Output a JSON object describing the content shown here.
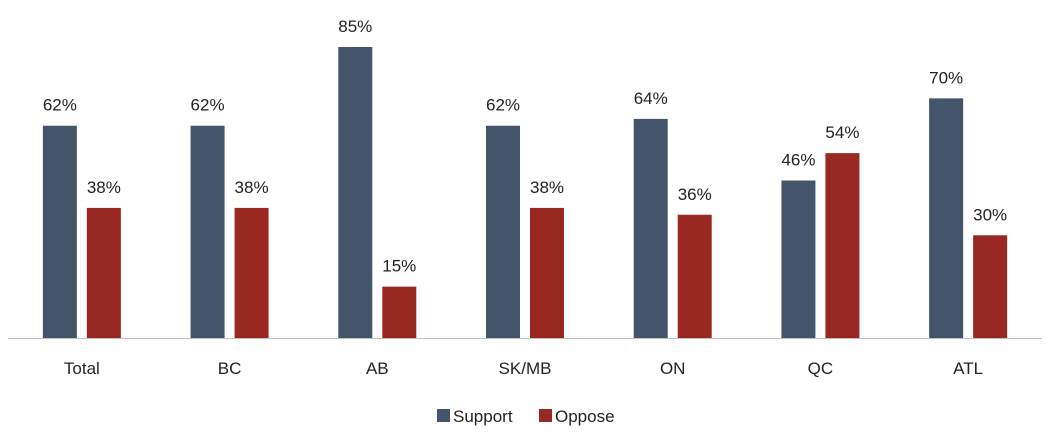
{
  "chart_data": {
    "type": "bar",
    "title": "",
    "xlabel": "",
    "ylabel": "",
    "ylim": [
      0,
      100
    ],
    "grid": false,
    "legend_position": "bottom",
    "categories": [
      "Total",
      "BC",
      "AB",
      "SK/MB",
      "ON",
      "QC",
      "ATL"
    ],
    "series": [
      {
        "name": "Support",
        "color": "#44546a",
        "values": [
          62,
          62,
          85,
          62,
          64,
          46,
          70
        ],
        "labels": [
          "62%",
          "62%",
          "85%",
          "62%",
          "64%",
          "46%",
          "70%"
        ]
      },
      {
        "name": "Oppose",
        "color": "#992822",
        "values": [
          38,
          38,
          15,
          38,
          36,
          54,
          30
        ],
        "labels": [
          "38%",
          "38%",
          "15%",
          "38%",
          "36%",
          "54%",
          "30%"
        ]
      }
    ]
  }
}
